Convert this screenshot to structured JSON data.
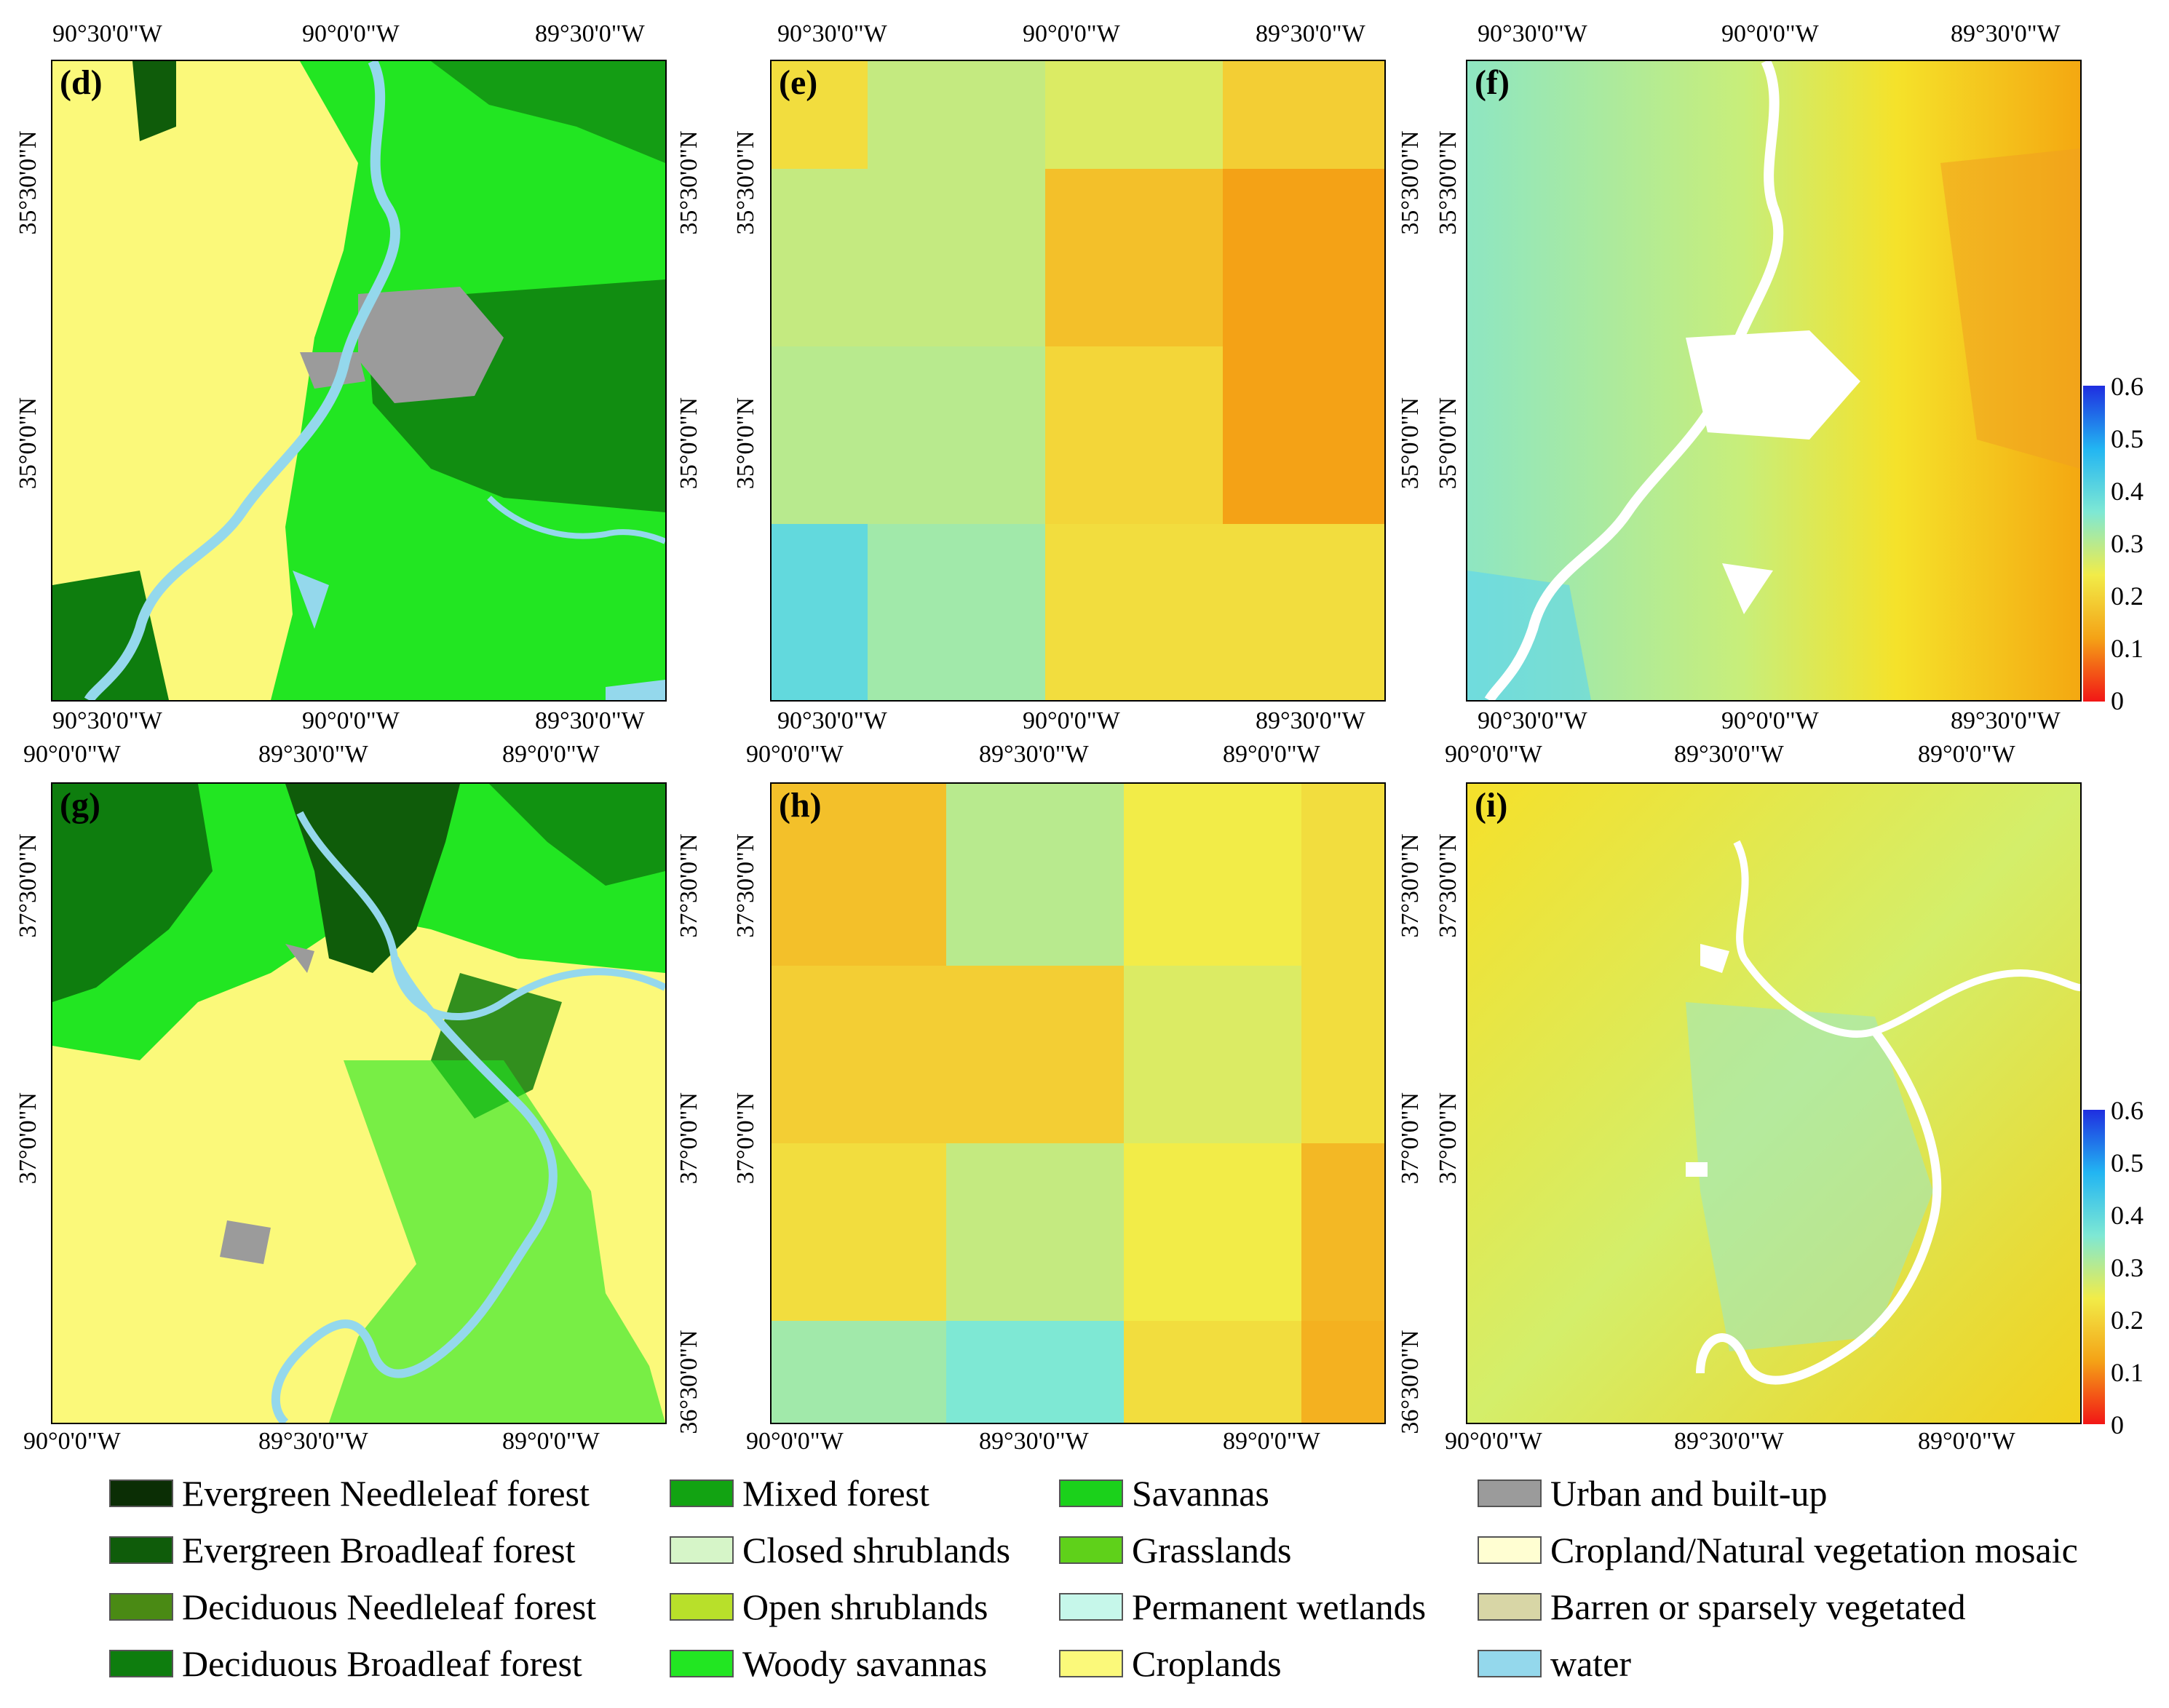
{
  "panels": {
    "d": {
      "label": "(d)",
      "top_ticks": [
        "90°30'0\"W",
        "90°0'0\"W",
        "89°30'0\"W"
      ],
      "bottom_ticks": [
        "90°30'0\"W",
        "90°0'0\"W",
        "89°30'0\"W"
      ],
      "left_ticks": [
        "35°30'0\"N",
        "35°0'0\"N"
      ],
      "right_ticks": [
        "35°30'0\"N",
        "35°0'0\"N"
      ]
    },
    "e": {
      "label": "(e)",
      "top_ticks": [
        "90°30'0\"W",
        "90°0'0\"W",
        "89°30'0\"W"
      ],
      "bottom_ticks": [
        "90°30'0\"W",
        "90°0'0\"W",
        "89°30'0\"W"
      ],
      "left_ticks": [
        "35°30'0\"N",
        "35°0'0\"N"
      ],
      "right_ticks": [
        "35°30'0\"N",
        "35°0'0\"N"
      ]
    },
    "f": {
      "label": "(f)",
      "top_ticks": [
        "90°30'0\"W",
        "90°0'0\"W",
        "89°30'0\"W"
      ],
      "bottom_ticks": [
        "90°30'0\"W",
        "90°0'0\"W",
        "89°30'0\"W"
      ],
      "left_ticks": [
        "35°30'0\"N",
        "35°0'0\"N"
      ],
      "colorbar": [
        "0.6",
        "0.5",
        "0.4",
        "0.3",
        "0.2",
        "0.1",
        "0"
      ]
    },
    "g": {
      "label": "(g)",
      "top_ticks": [
        "90°0'0\"W",
        "89°30'0\"W",
        "89°0'0\"W"
      ],
      "bottom_ticks": [
        "90°0'0\"W",
        "89°30'0\"W",
        "89°0'0\"W"
      ],
      "left_ticks": [
        "37°30'0\"N",
        "37°0'0\"N"
      ],
      "right_ticks": [
        "37°30'0\"N",
        "37°0'0\"N",
        "36°30'0\"N"
      ]
    },
    "h": {
      "label": "(h)",
      "top_ticks": [
        "90°0'0\"W",
        "89°30'0\"W",
        "89°0'0\"W"
      ],
      "bottom_ticks": [
        "90°0'0\"W",
        "89°30'0\"W",
        "89°0'0\"W"
      ],
      "left_ticks": [
        "37°30'0\"N",
        "37°0'0\"N"
      ],
      "right_ticks": [
        "37°30'0\"N",
        "37°0'0\"N",
        "36°30'0\"N"
      ]
    },
    "i": {
      "label": "(i)",
      "top_ticks": [
        "90°0'0\"W",
        "89°30'0\"W",
        "89°0'0\"W"
      ],
      "bottom_ticks": [
        "90°0'0\"W",
        "89°30'0\"W",
        "89°0'0\"W"
      ],
      "left_ticks": [
        "37°30'0\"N",
        "37°0'0\"N"
      ],
      "colorbar": [
        "0.6",
        "0.5",
        "0.4",
        "0.3",
        "0.2",
        "0.1",
        "0"
      ]
    }
  },
  "legend": [
    {
      "label": "Evergreen Needleleaf forest",
      "color": "#0b2e05"
    },
    {
      "label": "Evergreen Broadleaf forest",
      "color": "#0f5c0a"
    },
    {
      "label": "Deciduous Needleleaf forest",
      "color": "#4a8a14"
    },
    {
      "label": "Deciduous Broadleaf forest",
      "color": "#0e7d0e"
    },
    {
      "label": "Mixed forest",
      "color": "#12a312"
    },
    {
      "label": "Closed shrublands",
      "color": "#d6f5c8"
    },
    {
      "label": "Open shrublands",
      "color": "#b8e02a"
    },
    {
      "label": "Woody savannas",
      "color": "#22e622"
    },
    {
      "label": "Savannas",
      "color": "#1bd11b"
    },
    {
      "label": "Grasslands",
      "color": "#5fd11a"
    },
    {
      "label": "Permanent wetlands",
      "color": "#c6f7ea"
    },
    {
      "label": "Croplands",
      "color": "#fbf97a"
    },
    {
      "label": "Urban and built-up",
      "color": "#9b9b9b"
    },
    {
      "label": "Cropland/Natural vegetation mosaic",
      "color": "#fffed2"
    },
    {
      "label": "Barren or sparsely vegetated",
      "color": "#d8d6a6"
    },
    {
      "label": "water",
      "color": "#94d8ec"
    }
  ],
  "grid_e": [
    [
      0.18,
      0.24,
      0.22,
      0.16
    ],
    [
      0.24,
      0.24,
      0.14,
      0.1
    ],
    [
      0.25,
      0.25,
      0.17,
      0.1
    ],
    [
      0.33,
      0.27,
      0.18,
      0.18
    ]
  ],
  "grid_h": [
    [
      0.14,
      0.25,
      0.2,
      0.18
    ],
    [
      0.16,
      0.16,
      0.22,
      0.18
    ],
    [
      0.18,
      0.24,
      0.2,
      0.13
    ],
    [
      0.27,
      0.3,
      0.18,
      0.12
    ]
  ]
}
